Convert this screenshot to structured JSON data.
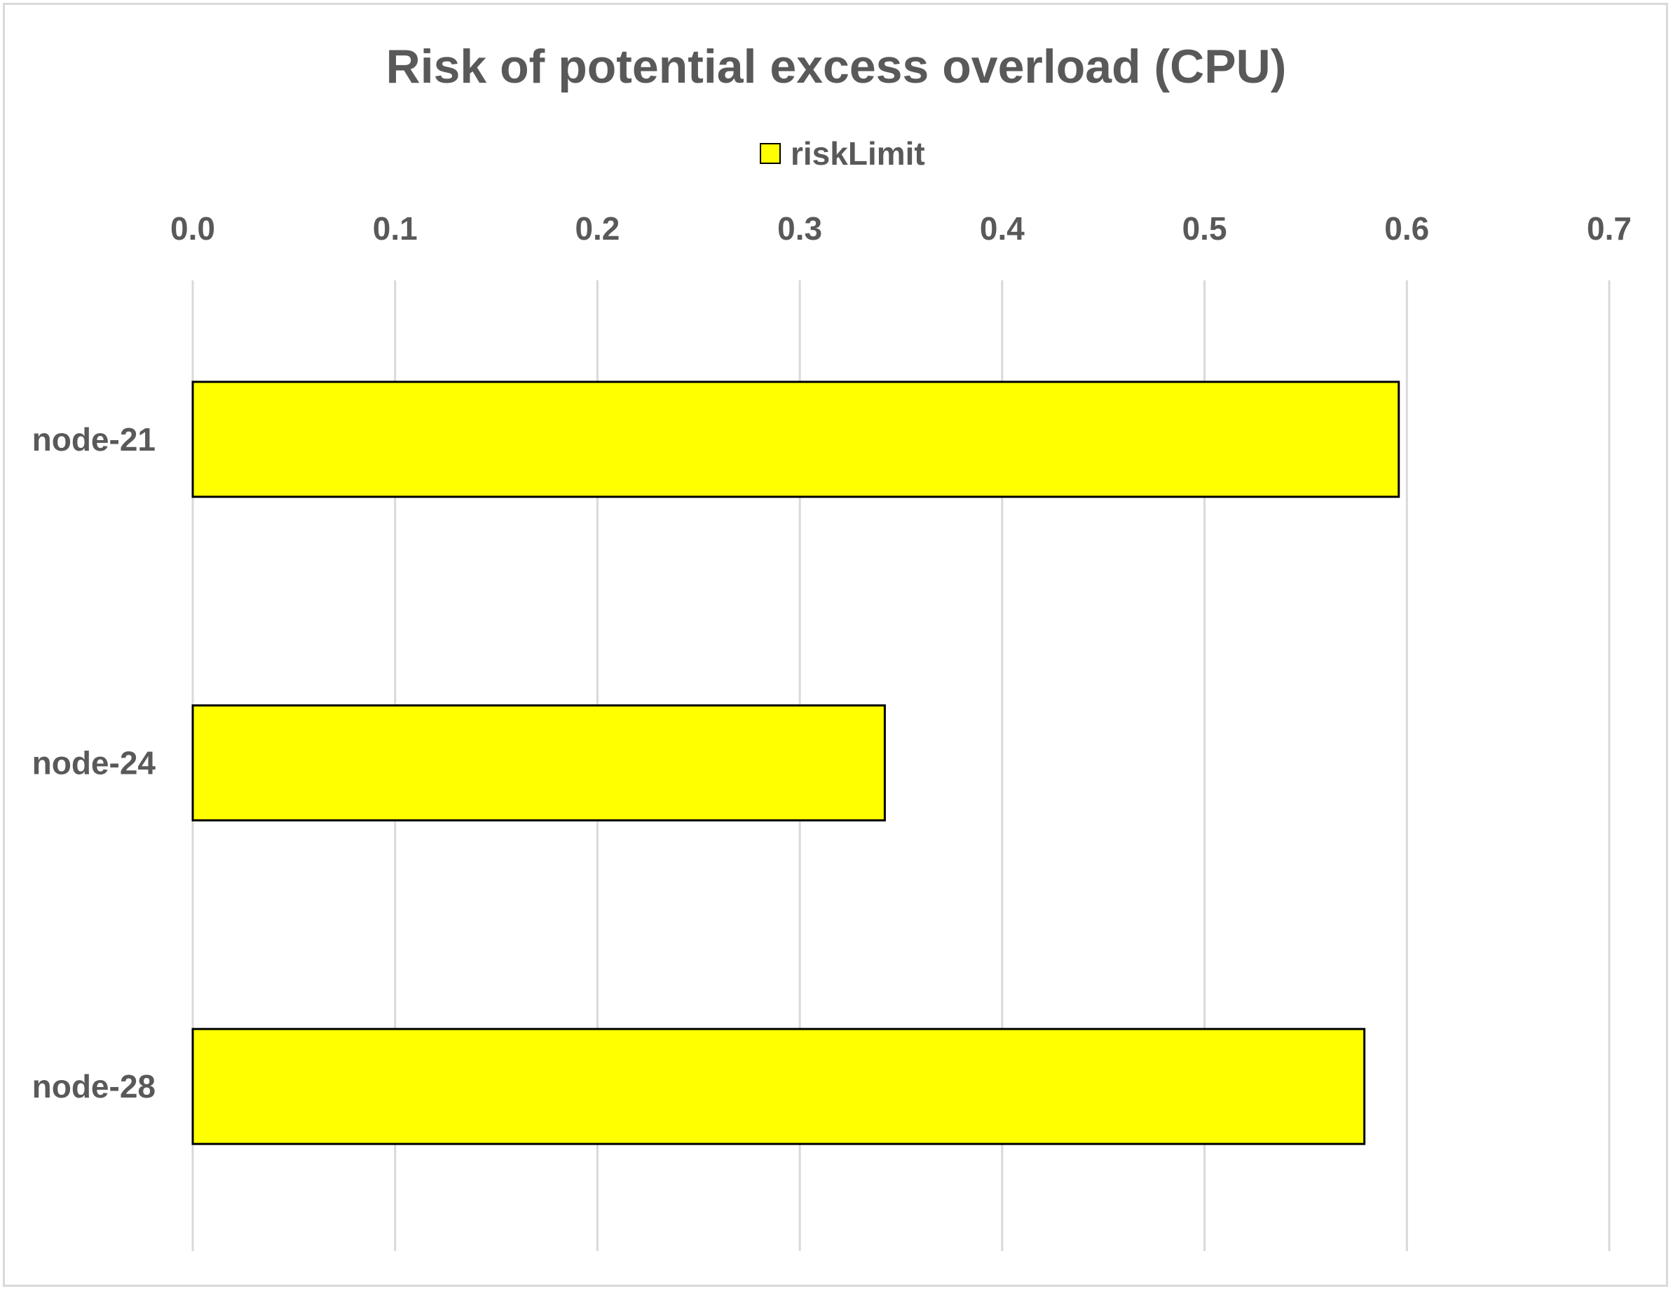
{
  "chart_data": {
    "type": "bar",
    "orientation": "horizontal",
    "title": "Risk of potential excess overload (CPU)",
    "categories": [
      "node-21",
      "node-24",
      "node-28"
    ],
    "series": [
      {
        "name": "riskLimit",
        "values": [
          0.596,
          0.342,
          0.579
        ],
        "color": "#ffff00"
      }
    ],
    "xlabel": "",
    "ylabel": "",
    "xlim": [
      0.0,
      0.7
    ],
    "x_ticks": [
      "0.0",
      "0.1",
      "0.2",
      "0.3",
      "0.4",
      "0.5",
      "0.6",
      "0.7"
    ],
    "x_axis_position": "top",
    "grid": true,
    "legend_position": "top",
    "bar_outline_color": "#000000",
    "gridline_color": "#d9d9d9",
    "text_color": "#595959"
  }
}
